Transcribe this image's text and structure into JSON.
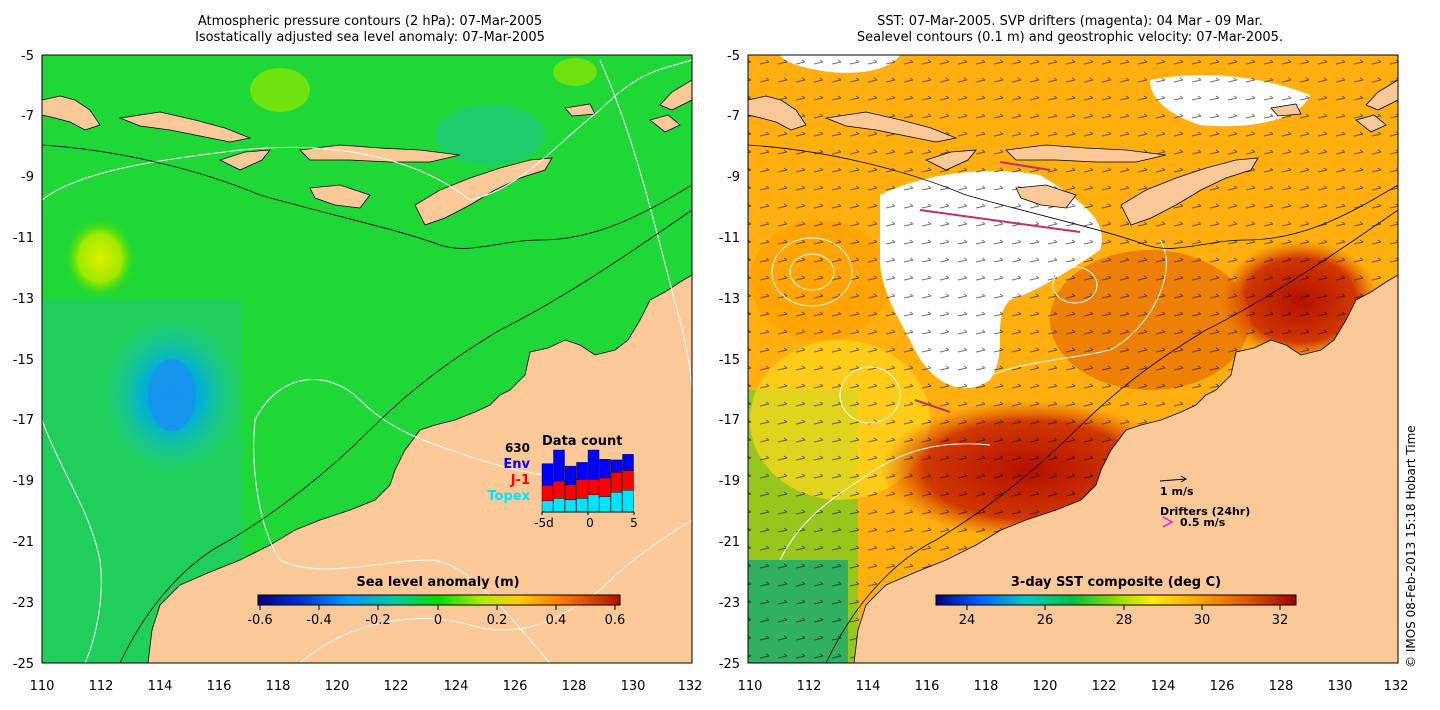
{
  "left_panel": {
    "title_line1": "Atmospheric pressure contours (2 hPa): 07-Mar-2005",
    "title_line2": "Isostatically adjusted sea level anomaly: 07-Mar-2005",
    "y_ticks": [
      "-5",
      "-7",
      "-9",
      "-11",
      "-13",
      "-15",
      "-17",
      "-19",
      "-21",
      "-23",
      "-25"
    ],
    "x_ticks": [
      "110",
      "112",
      "114",
      "116",
      "118",
      "120",
      "122",
      "124",
      "126",
      "128",
      "130",
      "132"
    ],
    "colorbar": {
      "label": "Sea level anomaly (m)",
      "ticks": [
        "-0.6",
        "-0.4",
        "-0.2",
        "0",
        "0.2",
        "0.4",
        "0.6"
      ]
    },
    "data_count": {
      "title": "Data count",
      "total": "630",
      "legend": [
        {
          "label": "Env",
          "color": "#0000ff"
        },
        {
          "label": "J-1",
          "color": "#ff0000"
        },
        {
          "label": "Topex",
          "color": "#00e5ff"
        }
      ],
      "x_ticks": [
        "-5d",
        "0",
        "5"
      ],
      "bars": [
        {
          "topex": 0.18,
          "j1": 0.25,
          "env": 0.35
        },
        {
          "topex": 0.22,
          "j1": 0.28,
          "env": 0.5
        },
        {
          "topex": 0.2,
          "j1": 0.24,
          "env": 0.3
        },
        {
          "topex": 0.22,
          "j1": 0.3,
          "env": 0.28
        },
        {
          "topex": 0.28,
          "j1": 0.25,
          "env": 0.47
        },
        {
          "topex": 0.25,
          "j1": 0.3,
          "env": 0.3
        },
        {
          "topex": 0.32,
          "j1": 0.32,
          "env": 0.2
        },
        {
          "topex": 0.35,
          "j1": 0.32,
          "env": 0.26
        }
      ]
    }
  },
  "right_panel": {
    "title_line1": "SST: 07-Mar-2005. SVP drifters (magenta): 04 Mar - 09 Mar.",
    "title_line2": "Sealevel contours (0.1 m) and geostrophic velocity: 07-Mar-2005.",
    "y_ticks": [
      "-5",
      "-7",
      "-9",
      "-11",
      "-13",
      "-15",
      "-17",
      "-19",
      "-21",
      "-23",
      "-25"
    ],
    "x_ticks": [
      "110",
      "112",
      "114",
      "116",
      "118",
      "120",
      "122",
      "124",
      "126",
      "128",
      "130",
      "132"
    ],
    "colorbar": {
      "label": "3-day SST composite (deg C)",
      "ticks": [
        "24",
        "26",
        "28",
        "30",
        "32"
      ]
    },
    "velocity_scale_label": "1 m/s",
    "drifters_label": "Drifters (24hr)",
    "drifters_scale_label": "0.5 m/s"
  },
  "timestamp": "© IMOS 08-Feb-2013 15:18 Hobart Time"
}
